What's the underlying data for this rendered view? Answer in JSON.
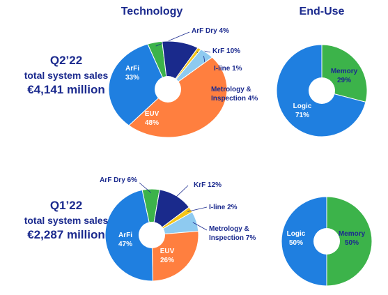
{
  "headers": [
    "Technology",
    "End-Use"
  ],
  "periods": [
    {
      "label": "Q2’22",
      "subtitle": "total system sales",
      "total": "€4,141 million"
    },
    {
      "label": "Q1’22",
      "subtitle": "total system sales",
      "total": "€2,287 million"
    }
  ],
  "chart_data": [
    {
      "type": "pie",
      "categories": [
        "ArF Dry",
        "KrF",
        "I-line",
        "Metrology & Inspection",
        "EUV",
        "ArFi"
      ],
      "values": [
        4,
        10,
        1,
        4,
        48,
        33
      ],
      "value_labels": [
        "4%",
        "10%",
        "1%",
        "4%",
        "48%",
        "33%"
      ],
      "colors": [
        "#3cb34a",
        "#1a2a8c",
        "#f5c518",
        "#8ecaf0",
        "#ff7f3f",
        "#1f7fe0"
      ]
    },
    {
      "type": "pie",
      "categories": [
        "Memory",
        "Logic"
      ],
      "values": [
        29,
        71
      ],
      "value_labels": [
        "29%",
        "71%"
      ],
      "colors": [
        "#3cb34a",
        "#1f7fe0"
      ]
    },
    {
      "type": "pie",
      "categories": [
        "ArF Dry",
        "KrF",
        "I-line",
        "Metrology & Inspection",
        "EUV",
        "ArFi"
      ],
      "values": [
        6,
        12,
        2,
        7,
        26,
        47
      ],
      "value_labels": [
        "6%",
        "12%",
        "2%",
        "7%",
        "26%",
        "47%"
      ],
      "colors": [
        "#3cb34a",
        "#1a2a8c",
        "#f5c518",
        "#8ecaf0",
        "#ff7f3f",
        "#1f7fe0"
      ]
    },
    {
      "type": "pie",
      "categories": [
        "Memory",
        "Logic"
      ],
      "values": [
        50,
        50
      ],
      "value_labels": [
        "50%",
        "50%"
      ],
      "colors": [
        "#3cb34a",
        "#1f7fe0"
      ]
    }
  ]
}
